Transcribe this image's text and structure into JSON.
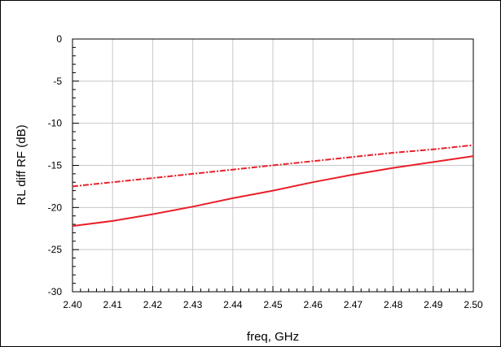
{
  "chart_data": {
    "type": "line",
    "title": "",
    "xlabel": "freq, GHz",
    "ylabel": "RL diff RF (dB)",
    "xlim": [
      2.4,
      2.5
    ],
    "ylim": [
      -30,
      0
    ],
    "grid": true,
    "x_ticks": [
      "2.40",
      "2.41",
      "2.42",
      "2.43",
      "2.44",
      "2.45",
      "2.46",
      "2.47",
      "2.48",
      "2.49",
      "2.50"
    ],
    "y_ticks": [
      "0",
      "-5",
      "-10",
      "-15",
      "-20",
      "-25",
      "-30"
    ],
    "x": [
      2.4,
      2.41,
      2.42,
      2.43,
      2.44,
      2.45,
      2.46,
      2.47,
      2.48,
      2.49,
      2.5
    ],
    "series": [
      {
        "style": "solid",
        "color": "#e8202a",
        "values": [
          -22.2,
          -21.6,
          -20.8,
          -19.9,
          -18.9,
          -18.0,
          -17.0,
          -16.1,
          -15.3,
          -14.6,
          -13.9
        ]
      },
      {
        "style": "dashed",
        "color": "#e8202a",
        "values": [
          -17.5,
          -17.0,
          -16.5,
          -16.0,
          -15.5,
          -15.0,
          -14.5,
          -14.0,
          -13.5,
          -13.1,
          -12.6
        ]
      }
    ]
  }
}
